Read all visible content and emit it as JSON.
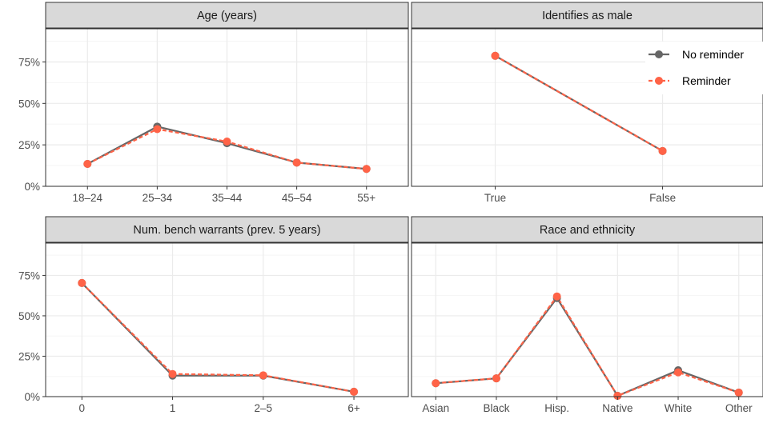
{
  "chart_data": [
    {
      "type": "line",
      "title": "Age (years)",
      "categories": [
        "18–24",
        "25–34",
        "35–44",
        "45–54",
        "55+"
      ],
      "ylim": [
        0,
        0.95
      ],
      "yticks": [
        0,
        0.25,
        0.5,
        0.75
      ],
      "ytick_labels": [
        "0%",
        "25%",
        "50%",
        "75%"
      ],
      "series": [
        {
          "name": "No reminder",
          "values": [
            0.135,
            0.36,
            0.26,
            0.143,
            0.105
          ]
        },
        {
          "name": "Reminder",
          "values": [
            0.135,
            0.345,
            0.27,
            0.143,
            0.105
          ]
        }
      ]
    },
    {
      "type": "line",
      "title": "Identifies as male",
      "categories": [
        "True",
        "False"
      ],
      "ylim": [
        0,
        0.95
      ],
      "yticks": [
        0,
        0.25,
        0.5,
        0.75
      ],
      "ytick_labels": [
        "0%",
        "25%",
        "50%",
        "75%"
      ],
      "series": [
        {
          "name": "No reminder",
          "values": [
            0.787,
            0.213
          ]
        },
        {
          "name": "Reminder",
          "values": [
            0.787,
            0.213
          ]
        }
      ]
    },
    {
      "type": "line",
      "title": "Num. bench warrants (prev. 5 years)",
      "categories": [
        "0",
        "1",
        "2–5",
        "6+"
      ],
      "ylim": [
        0,
        0.95
      ],
      "yticks": [
        0,
        0.25,
        0.5,
        0.75
      ],
      "ytick_labels": [
        "0%",
        "25%",
        "50%",
        "75%"
      ],
      "series": [
        {
          "name": "No reminder",
          "values": [
            0.703,
            0.13,
            0.13,
            0.03
          ]
        },
        {
          "name": "Reminder",
          "values": [
            0.703,
            0.14,
            0.132,
            0.03
          ]
        }
      ]
    },
    {
      "type": "line",
      "title": "Race and ethnicity",
      "categories": [
        "Asian",
        "Black",
        "Hisp.",
        "Native",
        "White",
        "Other"
      ],
      "ylim": [
        0,
        0.95
      ],
      "yticks": [
        0,
        0.25,
        0.5,
        0.75
      ],
      "ytick_labels": [
        "0%",
        "25%",
        "50%",
        "75%"
      ],
      "series": [
        {
          "name": "No reminder",
          "values": [
            0.083,
            0.113,
            0.61,
            0.005,
            0.163,
            0.025
          ]
        },
        {
          "name": "Reminder",
          "values": [
            0.083,
            0.113,
            0.62,
            0.005,
            0.15,
            0.025
          ]
        }
      ]
    }
  ],
  "legend": {
    "placement": "top-right",
    "entries": [
      {
        "label": "No reminder",
        "color": "#666666",
        "line": "solid"
      },
      {
        "label": "Reminder",
        "color": "#ff6347",
        "line": "dashed"
      }
    ]
  },
  "colors": {
    "no_reminder": "#666666",
    "reminder": "#ff6347",
    "strip_fill": "#d9d9d9",
    "strip_border": "#333333",
    "grid_major": "#ebebeb",
    "grid_minor": "#f5f5f5"
  }
}
